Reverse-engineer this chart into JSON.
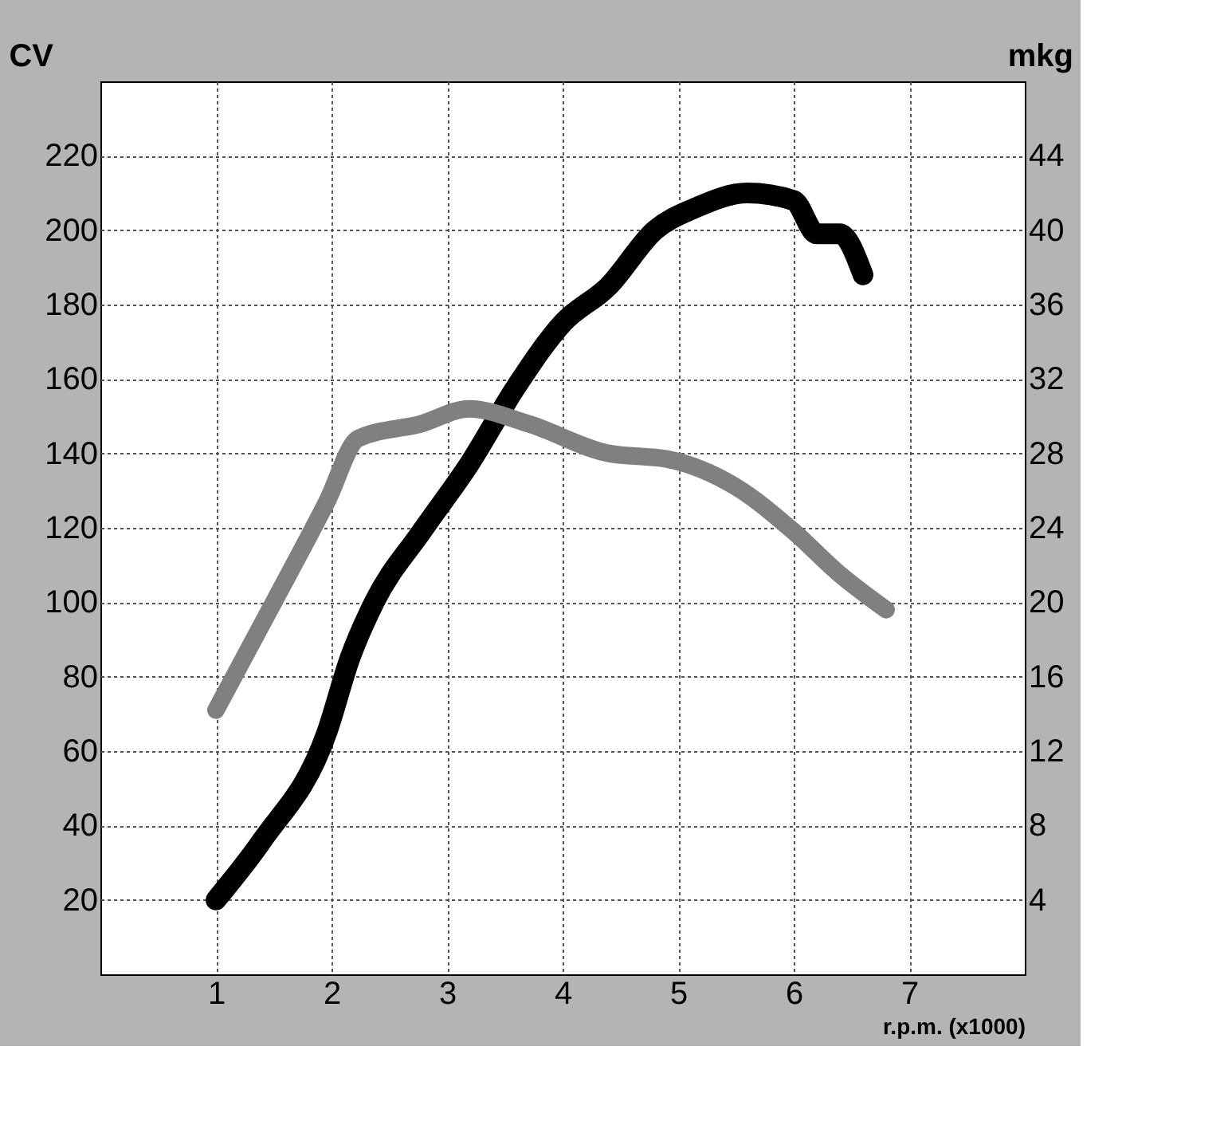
{
  "chart_data": {
    "type": "line",
    "xlabel": "r.p.m. (x1000)",
    "ylabel": "CV",
    "y2label": "mkg",
    "xlim": [
      0,
      8
    ],
    "xticks": [
      1,
      2,
      3,
      4,
      5,
      6,
      7
    ],
    "ylim": [
      0,
      240
    ],
    "yticks": [
      20,
      40,
      60,
      80,
      100,
      120,
      140,
      160,
      180,
      200,
      220
    ],
    "y2lim": [
      0,
      48
    ],
    "y2ticks": [
      4,
      8,
      12,
      16,
      20,
      24,
      28,
      32,
      36,
      40,
      44
    ],
    "grid": true,
    "line_style": "solid",
    "series": [
      {
        "color": "#000000",
        "x": [
          1,
          1.4,
          1.96,
          2.16,
          2.37,
          2.78,
          3.19,
          3.6,
          4.0,
          4.4,
          4.8,
          5.15,
          5.6,
          6.0,
          6.2,
          6.4,
          6.6
        ],
        "values": [
          20,
          36,
          65,
          85,
          100,
          119,
          137,
          158,
          175,
          185,
          200,
          206,
          210,
          208,
          199,
          199,
          188
        ]
      },
      {
        "color": "#808080",
        "axis": "y2",
        "x": [
          1,
          1.5,
          1.96,
          2.23,
          2.78,
          3.19,
          3.7,
          4.4,
          4.9,
          5.5,
          6.0,
          6.4,
          6.8
        ],
        "values": [
          14.2,
          20,
          25.4,
          28.8,
          29.6,
          30.4,
          29.6,
          28,
          27.7,
          26.2,
          23.8,
          21.5,
          19.6
        ]
      }
    ]
  }
}
